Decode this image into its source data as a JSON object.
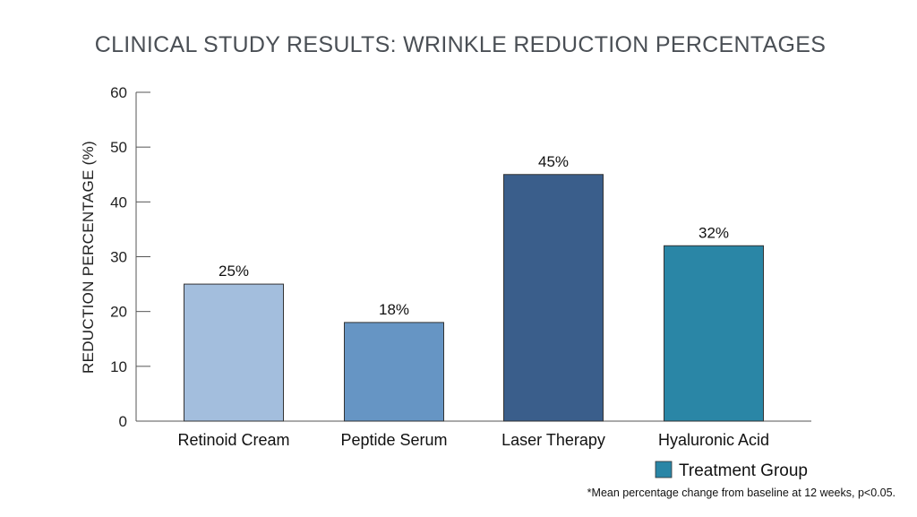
{
  "chart_data": {
    "type": "bar",
    "title": "CLINICAL STUDY RESULTS: WRINKLE REDUCTION PERCENTAGES",
    "ylabel": "REDUCTION PERCENTAGE (%)",
    "xlabel": "",
    "ylim": [
      0,
      60
    ],
    "yticks": [
      0,
      10,
      20,
      30,
      40,
      50,
      60
    ],
    "categories": [
      "Retinoid Cream",
      "Peptide Serum",
      "Laser Therapy",
      "Hyaluronic Acid"
    ],
    "values": [
      25,
      18,
      45,
      32
    ],
    "data_labels": [
      "25%",
      "18%",
      "45%",
      "32%"
    ],
    "bar_colors": [
      "#a3bedd",
      "#6695c4",
      "#3a5e8b",
      "#2a86a6"
    ],
    "grid": false,
    "legend": {
      "position": "bottom-right",
      "entries": [
        {
          "label": "Treatment Group",
          "color": "#2a86a6"
        }
      ]
    },
    "footnote": "*Mean percentage change from baseline at 12 weeks, p<0.05."
  },
  "colors": {
    "axis": "#555555",
    "bar_border": "#333333",
    "title": "#4a4f55"
  }
}
